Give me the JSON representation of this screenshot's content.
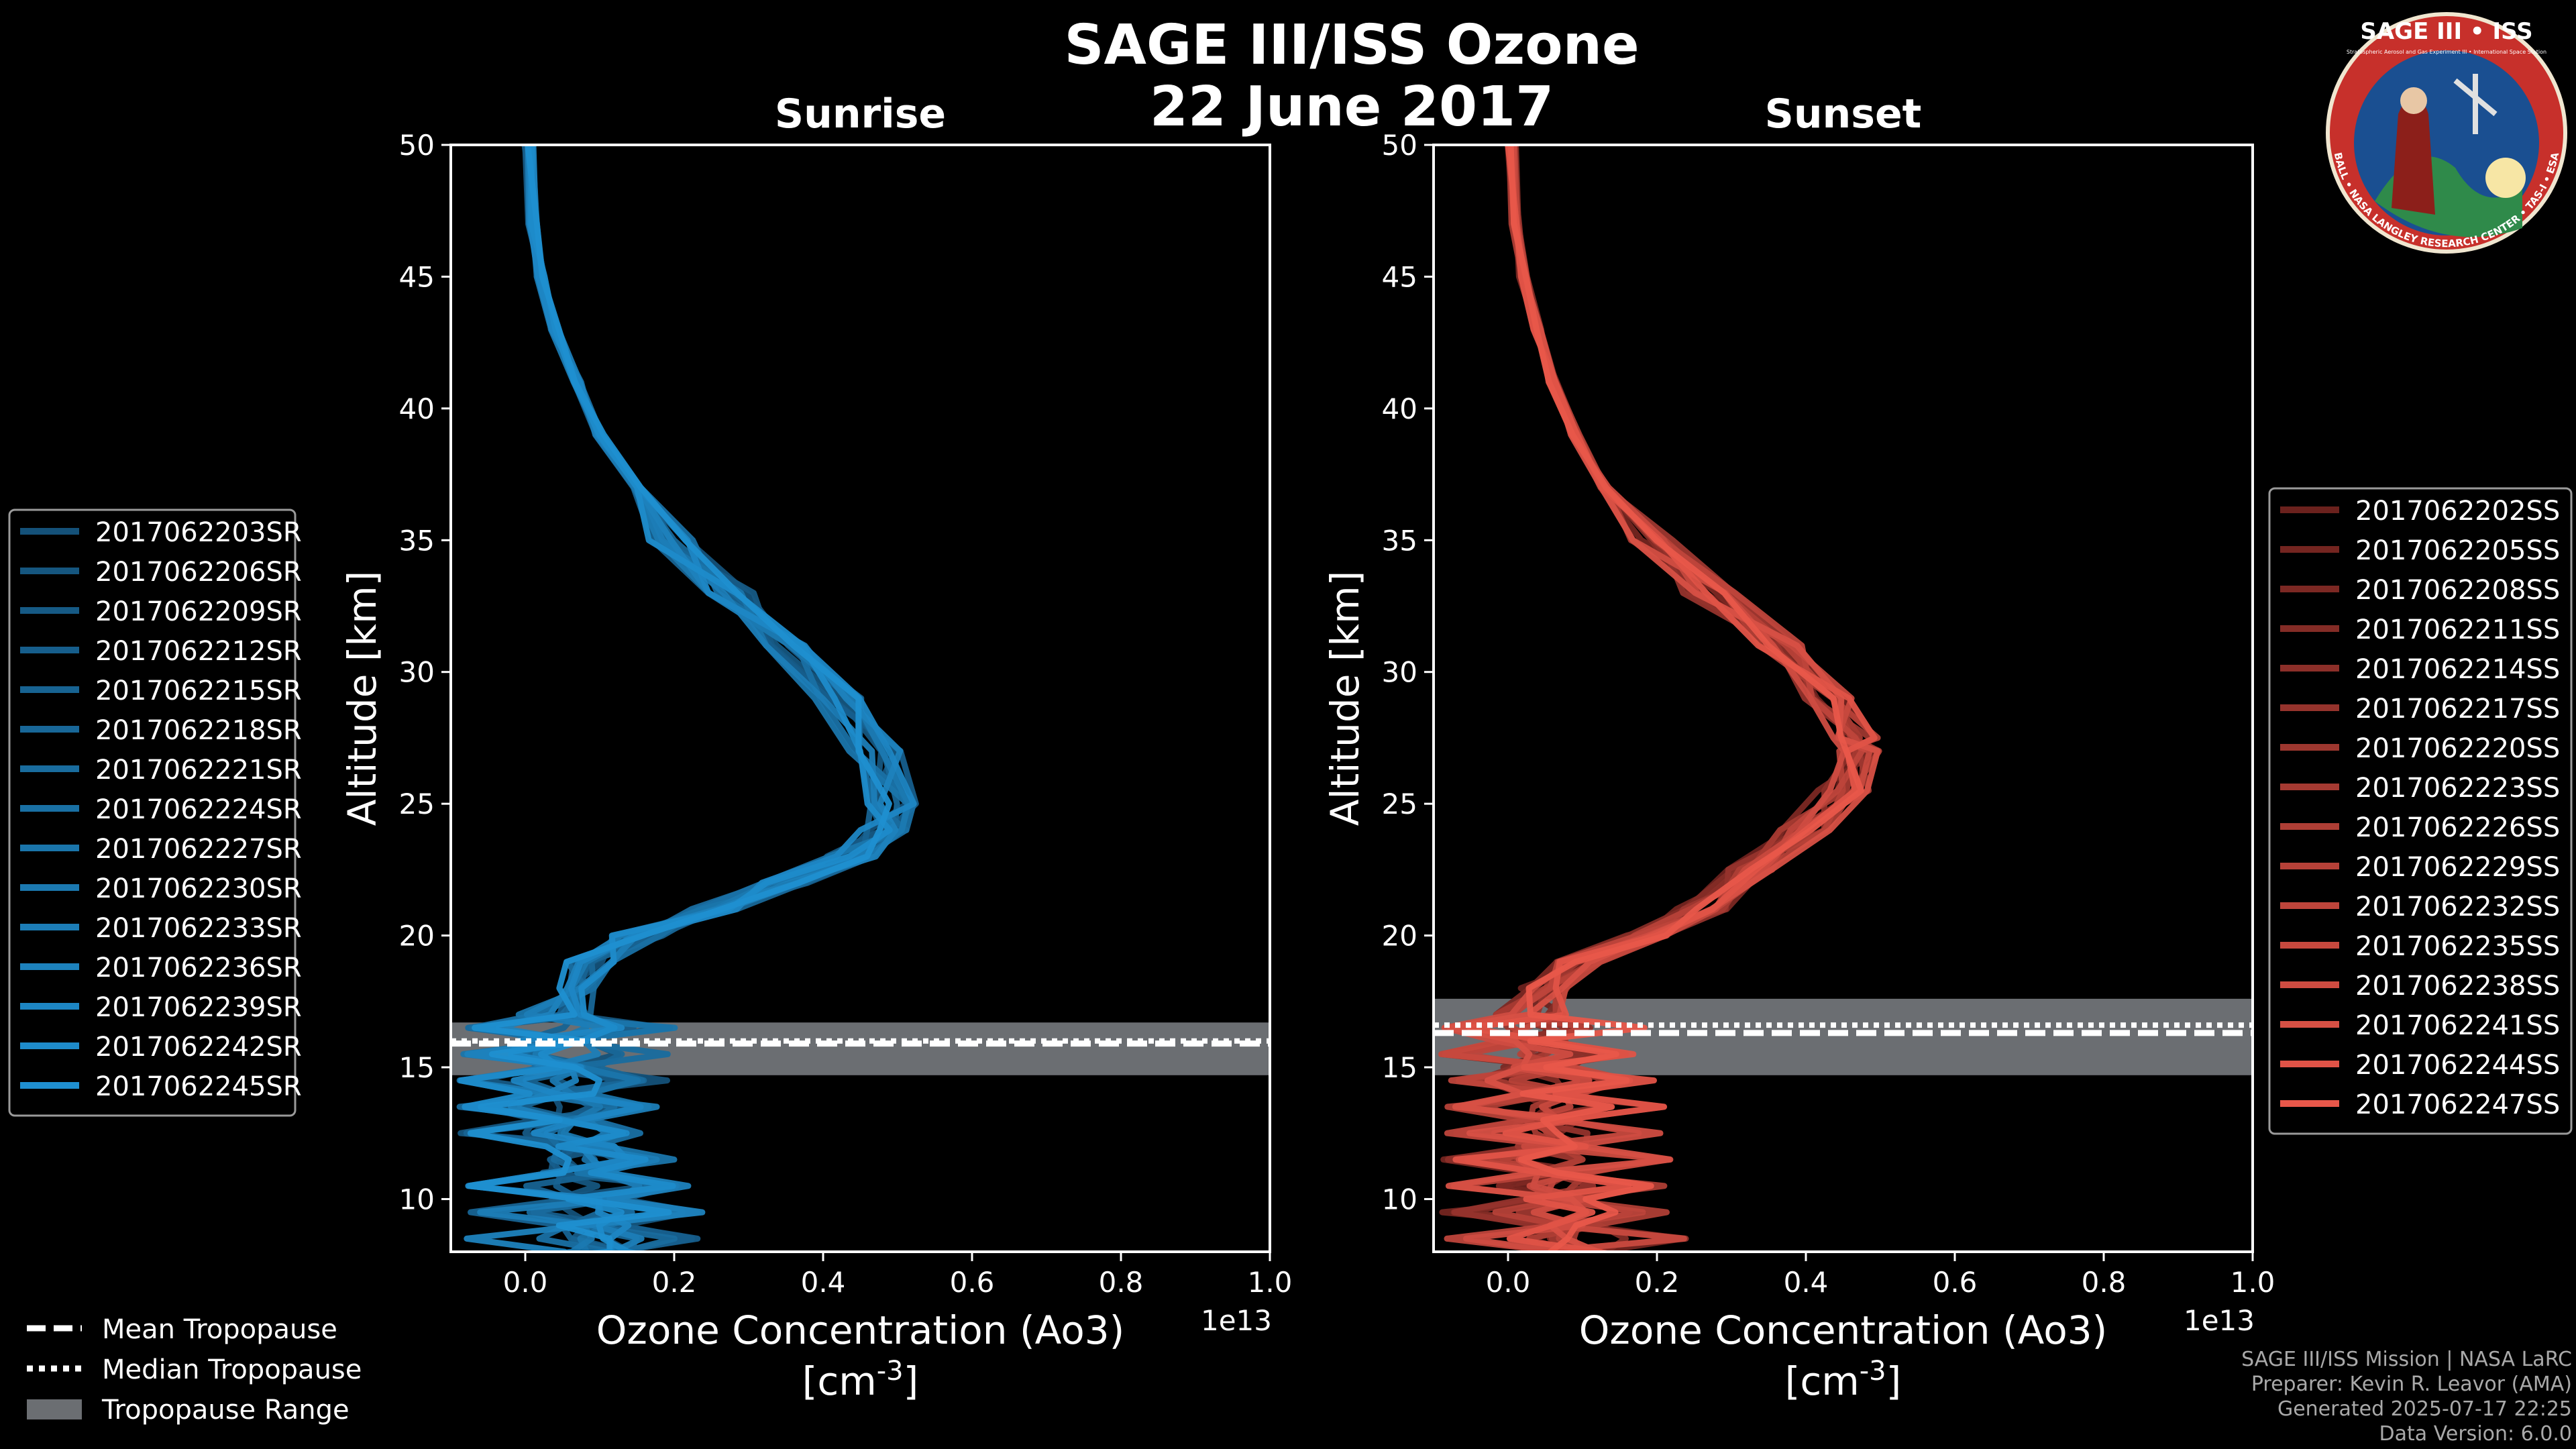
{
  "title": "SAGE III/ISS Ozone",
  "subtitle": "22 June 2017",
  "logo": {
    "text_top": "SAGE III • ISS",
    "text_ring": "BALL • NASA LANGLEY RESEARCH CENTER • TAS-I • ESA",
    "text_small": "Stratospheric Aerosol and Gas Experiment III • International Space Station"
  },
  "colors": {
    "background": "#000000",
    "sunrise_base": "#1f8fd0",
    "sunset_base": "#e8574a",
    "tropopause_band": "#6b6e72",
    "axis": "#ffffff"
  },
  "credits": [
    "SAGE III/ISS Mission | NASA LaRC",
    "Preparer: Kevin R. Leavor (AMA)",
    "Generated 2025-07-17 22:25",
    "Data Version: 6.0.0"
  ],
  "legend_tropopause": [
    {
      "label": "Mean Tropopause",
      "style": "dashed"
    },
    {
      "label": "Median Tropopause",
      "style": "dotted"
    },
    {
      "label": "Tropopause Range",
      "style": "patch"
    }
  ],
  "chart_data": [
    {
      "type": "line",
      "title": "Sunrise",
      "xlabel": "Ozone Concentration (Ao3)",
      "xunit": "[cm$^{-3}$]",
      "ylabel": "Altitude [km]",
      "xlim": [
        -0.1,
        1.0
      ],
      "ylim": [
        8,
        50
      ],
      "x_scale_label": "1e13",
      "xticks": [
        0.0,
        0.2,
        0.4,
        0.6,
        0.8,
        1.0
      ],
      "xtick_labels": [
        "0.0",
        "0.2",
        "0.4",
        "0.6",
        "0.8",
        "1.0"
      ],
      "yticks": [
        10,
        15,
        20,
        25,
        30,
        35,
        40,
        45,
        50
      ],
      "tropopause": {
        "mean": 15.9,
        "median": 16.0,
        "min": 14.7,
        "max": 16.7
      },
      "base_profile": [
        [
          0.005,
          50
        ],
        [
          0.01,
          47
        ],
        [
          0.02,
          45
        ],
        [
          0.04,
          43
        ],
        [
          0.07,
          41
        ],
        [
          0.1,
          39
        ],
        [
          0.15,
          37
        ],
        [
          0.2,
          35
        ],
        [
          0.28,
          33
        ],
        [
          0.35,
          31
        ],
        [
          0.42,
          29
        ],
        [
          0.47,
          27
        ],
        [
          0.49,
          25
        ],
        [
          0.48,
          24
        ],
        [
          0.44,
          23
        ],
        [
          0.35,
          22
        ],
        [
          0.25,
          21
        ],
        [
          0.15,
          20
        ],
        [
          0.09,
          19
        ],
        [
          0.06,
          18
        ],
        [
          0.04,
          17
        ],
        [
          0.04,
          16
        ],
        [
          0.05,
          15
        ],
        [
          0.05,
          14
        ],
        [
          0.06,
          13
        ],
        [
          0.07,
          12
        ],
        [
          0.07,
          11
        ],
        [
          0.08,
          10
        ],
        [
          0.09,
          9
        ],
        [
          0.1,
          8
        ]
      ],
      "series": [
        {
          "name": "2017062203SR"
        },
        {
          "name": "2017062206SR"
        },
        {
          "name": "2017062209SR"
        },
        {
          "name": "2017062212SR"
        },
        {
          "name": "2017062215SR"
        },
        {
          "name": "2017062218SR"
        },
        {
          "name": "2017062221SR"
        },
        {
          "name": "2017062224SR"
        },
        {
          "name": "2017062227SR"
        },
        {
          "name": "2017062230SR"
        },
        {
          "name": "2017062233SR"
        },
        {
          "name": "2017062236SR"
        },
        {
          "name": "2017062239SR"
        },
        {
          "name": "2017062242SR"
        },
        {
          "name": "2017062245SR"
        }
      ]
    },
    {
      "type": "line",
      "title": "Sunset",
      "xlabel": "Ozone Concentration (Ao3)",
      "xunit": "[cm$^{-3}$]",
      "ylabel": "Altitude [km]",
      "xlim": [
        -0.1,
        1.0
      ],
      "ylim": [
        8,
        50
      ],
      "x_scale_label": "1e13",
      "xticks": [
        0.0,
        0.2,
        0.4,
        0.6,
        0.8,
        1.0
      ],
      "xtick_labels": [
        "0.0",
        "0.2",
        "0.4",
        "0.6",
        "0.8",
        "1.0"
      ],
      "yticks": [
        10,
        15,
        20,
        25,
        30,
        35,
        40,
        45,
        50
      ],
      "tropopause": {
        "mean": 16.3,
        "median": 16.6,
        "min": 14.7,
        "max": 17.6
      },
      "base_profile": [
        [
          0.005,
          50
        ],
        [
          0.01,
          47
        ],
        [
          0.02,
          45
        ],
        [
          0.04,
          43
        ],
        [
          0.06,
          41
        ],
        [
          0.09,
          39
        ],
        [
          0.13,
          37
        ],
        [
          0.19,
          35
        ],
        [
          0.27,
          33
        ],
        [
          0.36,
          31
        ],
        [
          0.43,
          29
        ],
        [
          0.47,
          27.5
        ],
        [
          0.47,
          27
        ],
        [
          0.45,
          25.5
        ],
        [
          0.4,
          24
        ],
        [
          0.33,
          22.5
        ],
        [
          0.26,
          21
        ],
        [
          0.18,
          20
        ],
        [
          0.1,
          19
        ],
        [
          0.05,
          18
        ],
        [
          0.03,
          17
        ],
        [
          0.03,
          16
        ],
        [
          0.04,
          15
        ],
        [
          0.05,
          14
        ],
        [
          0.06,
          13
        ],
        [
          0.06,
          12
        ],
        [
          0.07,
          11
        ],
        [
          0.07,
          10
        ],
        [
          0.08,
          9
        ],
        [
          0.09,
          8
        ]
      ],
      "series": [
        {
          "name": "2017062202SS"
        },
        {
          "name": "2017062205SS"
        },
        {
          "name": "2017062208SS"
        },
        {
          "name": "2017062211SS"
        },
        {
          "name": "2017062214SS"
        },
        {
          "name": "2017062217SS"
        },
        {
          "name": "2017062220SS"
        },
        {
          "name": "2017062223SS"
        },
        {
          "name": "2017062226SS"
        },
        {
          "name": "2017062229SS"
        },
        {
          "name": "2017062232SS"
        },
        {
          "name": "2017062235SS"
        },
        {
          "name": "2017062238SS"
        },
        {
          "name": "2017062241SS"
        },
        {
          "name": "2017062244SS"
        },
        {
          "name": "2017062247SS"
        }
      ]
    }
  ]
}
